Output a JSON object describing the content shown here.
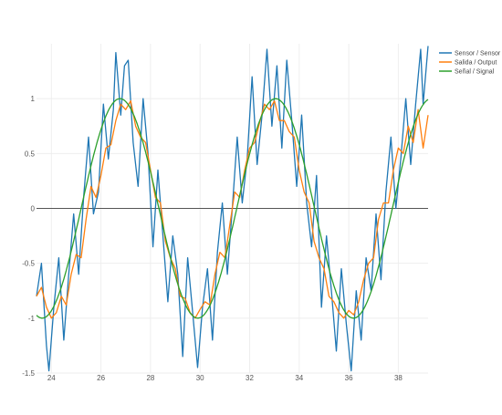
{
  "chart_data": {
    "type": "line",
    "title": "",
    "xlabel": "",
    "ylabel": "",
    "xlim": [
      23.4,
      39.2
    ],
    "ylim": [
      -1.5,
      1.5
    ],
    "grid": true,
    "legend_position": "top-right",
    "x_ticks": [
      {
        "value": 24,
        "label": "24"
      },
      {
        "value": 26,
        "label": "26"
      },
      {
        "value": 28,
        "label": "28"
      },
      {
        "value": 30,
        "label": "30"
      },
      {
        "value": 32,
        "label": "32"
      },
      {
        "value": 34,
        "label": "34"
      },
      {
        "value": 36,
        "label": "36"
      },
      {
        "value": 38,
        "label": "38"
      }
    ],
    "y_ticks": [
      {
        "value": -1.5,
        "label": "-1.5"
      },
      {
        "value": -1,
        "label": "-1"
      },
      {
        "value": -0.5,
        "label": "-0.5"
      },
      {
        "value": 0,
        "label": "0"
      },
      {
        "value": 0.5,
        "label": "0.5"
      },
      {
        "value": 1,
        "label": "1"
      }
    ],
    "series": [
      {
        "name": "Sensor / Sensor",
        "color": "#1f77b4",
        "points": [
          [
            23.4,
            -0.8
          ],
          [
            23.6,
            -0.5
          ],
          [
            23.8,
            -1.25
          ],
          [
            23.9,
            -1.48
          ],
          [
            24.1,
            -0.9
          ],
          [
            24.3,
            -0.45
          ],
          [
            24.5,
            -1.2
          ],
          [
            24.7,
            -0.6
          ],
          [
            24.9,
            -0.05
          ],
          [
            25.1,
            -0.6
          ],
          [
            25.3,
            0.1
          ],
          [
            25.5,
            0.65
          ],
          [
            25.7,
            -0.05
          ],
          [
            25.9,
            0.15
          ],
          [
            26.1,
            0.95
          ],
          [
            26.3,
            0.45
          ],
          [
            26.5,
            0.9
          ],
          [
            26.6,
            1.42
          ],
          [
            26.8,
            0.85
          ],
          [
            26.95,
            1.3
          ],
          [
            27.1,
            1.35
          ],
          [
            27.3,
            0.6
          ],
          [
            27.5,
            0.2
          ],
          [
            27.7,
            1.0
          ],
          [
            27.9,
            0.5
          ],
          [
            28.1,
            -0.35
          ],
          [
            28.3,
            0.35
          ],
          [
            28.5,
            -0.25
          ],
          [
            28.7,
            -0.85
          ],
          [
            28.9,
            -0.25
          ],
          [
            29.1,
            -0.6
          ],
          [
            29.3,
            -1.35
          ],
          [
            29.5,
            -0.45
          ],
          [
            29.7,
            -0.95
          ],
          [
            29.9,
            -1.45
          ],
          [
            30.1,
            -0.9
          ],
          [
            30.3,
            -0.55
          ],
          [
            30.5,
            -1.2
          ],
          [
            30.7,
            -0.4
          ],
          [
            30.9,
            0.05
          ],
          [
            31.1,
            -0.6
          ],
          [
            31.3,
            0.0
          ],
          [
            31.5,
            0.65
          ],
          [
            31.7,
            0.05
          ],
          [
            31.9,
            0.45
          ],
          [
            32.1,
            1.2
          ],
          [
            32.3,
            0.4
          ],
          [
            32.5,
            0.85
          ],
          [
            32.7,
            1.45
          ],
          [
            32.9,
            0.75
          ],
          [
            33.1,
            1.3
          ],
          [
            33.3,
            0.55
          ],
          [
            33.5,
            1.35
          ],
          [
            33.7,
            0.8
          ],
          [
            33.9,
            0.2
          ],
          [
            34.1,
            0.85
          ],
          [
            34.3,
            0.05
          ],
          [
            34.5,
            -0.35
          ],
          [
            34.7,
            0.3
          ],
          [
            34.9,
            -0.9
          ],
          [
            35.1,
            -0.25
          ],
          [
            35.3,
            -0.75
          ],
          [
            35.5,
            -1.3
          ],
          [
            35.7,
            -0.55
          ],
          [
            35.9,
            -1.05
          ],
          [
            36.1,
            -1.48
          ],
          [
            36.3,
            -0.75
          ],
          [
            36.5,
            -1.2
          ],
          [
            36.7,
            -0.45
          ],
          [
            36.9,
            -0.75
          ],
          [
            37.1,
            -0.05
          ],
          [
            37.3,
            -0.65
          ],
          [
            37.5,
            0.15
          ],
          [
            37.7,
            0.65
          ],
          [
            37.9,
            0.0
          ],
          [
            38.1,
            0.45
          ],
          [
            38.3,
            1.0
          ],
          [
            38.5,
            0.4
          ],
          [
            38.7,
            0.95
          ],
          [
            38.9,
            1.45
          ],
          [
            39.0,
            0.95
          ],
          [
            39.2,
            1.48
          ]
        ]
      },
      {
        "name": "Salida / Output",
        "color": "#ff7f0e",
        "points": [
          [
            23.4,
            -0.8
          ],
          [
            23.6,
            -0.72
          ],
          [
            23.8,
            -0.9
          ],
          [
            24.0,
            -1.0
          ],
          [
            24.2,
            -0.95
          ],
          [
            24.4,
            -0.8
          ],
          [
            24.6,
            -0.88
          ],
          [
            24.8,
            -0.6
          ],
          [
            25.0,
            -0.42
          ],
          [
            25.2,
            -0.45
          ],
          [
            25.4,
            -0.1
          ],
          [
            25.6,
            0.2
          ],
          [
            25.8,
            0.1
          ],
          [
            26.0,
            0.3
          ],
          [
            26.2,
            0.55
          ],
          [
            26.4,
            0.58
          ],
          [
            26.6,
            0.8
          ],
          [
            26.8,
            0.95
          ],
          [
            27.0,
            0.9
          ],
          [
            27.2,
            0.98
          ],
          [
            27.4,
            0.75
          ],
          [
            27.6,
            0.65
          ],
          [
            27.8,
            0.6
          ],
          [
            28.0,
            0.35
          ],
          [
            28.2,
            0.1
          ],
          [
            28.4,
            0.05
          ],
          [
            28.6,
            -0.3
          ],
          [
            28.8,
            -0.45
          ],
          [
            29.0,
            -0.55
          ],
          [
            29.2,
            -0.8
          ],
          [
            29.4,
            -0.82
          ],
          [
            29.6,
            -0.95
          ],
          [
            29.8,
            -1.0
          ],
          [
            30.0,
            -0.92
          ],
          [
            30.2,
            -0.85
          ],
          [
            30.4,
            -0.88
          ],
          [
            30.6,
            -0.6
          ],
          [
            30.8,
            -0.4
          ],
          [
            31.0,
            -0.45
          ],
          [
            31.2,
            -0.15
          ],
          [
            31.4,
            0.15
          ],
          [
            31.6,
            0.1
          ],
          [
            31.8,
            0.35
          ],
          [
            32.0,
            0.55
          ],
          [
            32.2,
            0.6
          ],
          [
            32.4,
            0.78
          ],
          [
            32.6,
            0.95
          ],
          [
            32.8,
            0.9
          ],
          [
            33.0,
            0.98
          ],
          [
            33.2,
            0.8
          ],
          [
            33.4,
            0.8
          ],
          [
            33.6,
            0.7
          ],
          [
            33.8,
            0.65
          ],
          [
            34.0,
            0.35
          ],
          [
            34.2,
            0.15
          ],
          [
            34.4,
            0.05
          ],
          [
            34.6,
            -0.3
          ],
          [
            34.8,
            -0.45
          ],
          [
            35.0,
            -0.55
          ],
          [
            35.2,
            -0.8
          ],
          [
            35.4,
            -0.85
          ],
          [
            35.6,
            -0.95
          ],
          [
            35.8,
            -1.0
          ],
          [
            36.0,
            -0.93
          ],
          [
            36.2,
            -0.97
          ],
          [
            36.4,
            -0.85
          ],
          [
            36.6,
            -0.65
          ],
          [
            36.8,
            -0.5
          ],
          [
            37.0,
            -0.45
          ],
          [
            37.2,
            -0.1
          ],
          [
            37.4,
            0.05
          ],
          [
            37.6,
            0.05
          ],
          [
            37.8,
            0.35
          ],
          [
            38.0,
            0.55
          ],
          [
            38.2,
            0.5
          ],
          [
            38.4,
            0.75
          ],
          [
            38.6,
            0.6
          ],
          [
            38.8,
            0.9
          ],
          [
            39.0,
            0.55
          ],
          [
            39.2,
            0.85
          ]
        ]
      },
      {
        "name": "Señal / Signal",
        "color": "#2ca02c",
        "function": "sin(2*pi*(x-25.2)/6.28)",
        "period": 6.28,
        "zero_crossing": 25.2,
        "amplitude": 1.0
      }
    ]
  }
}
